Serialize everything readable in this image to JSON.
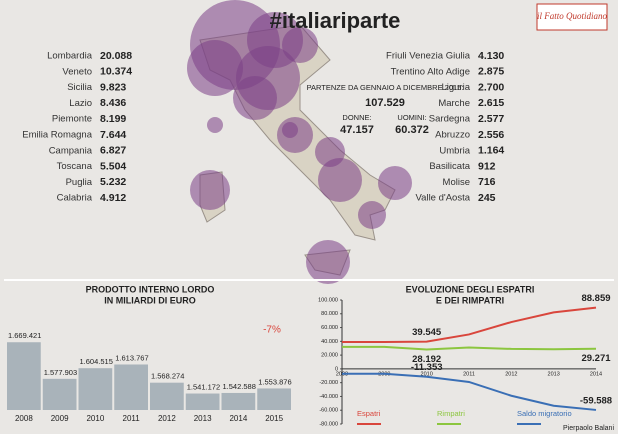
{
  "header": {
    "title": "#italiariparte",
    "logo": "il Fatto Quotidiano"
  },
  "regions_left": [
    [
      "Lombardia",
      "20.088"
    ],
    [
      "Veneto",
      "10.374"
    ],
    [
      "Sicilia",
      "9.823"
    ],
    [
      "Lazio",
      "8.436"
    ],
    [
      "Piemonte",
      "8.199"
    ],
    [
      "Emilia Romagna",
      "7.644"
    ],
    [
      "Campania",
      "6.827"
    ],
    [
      "Toscana",
      "5.504"
    ],
    [
      "Puglia",
      "5.232"
    ],
    [
      "Calabria",
      "4.912"
    ]
  ],
  "regions_right": [
    [
      "Friuli Venezia Giulia",
      "4.130"
    ],
    [
      "Trentino Alto Adige",
      "2.875"
    ],
    [
      "Liguria",
      "2.700"
    ],
    [
      "Marche",
      "2.615"
    ],
    [
      "Sardegna",
      "2.577"
    ],
    [
      "Abruzzo",
      "2.556"
    ],
    [
      "Umbria",
      "1.164"
    ],
    [
      "Basilicata",
      "912"
    ],
    [
      "Molise",
      "716"
    ],
    [
      "Valle d'Aosta",
      "245"
    ]
  ],
  "totals": {
    "label": "PARTENZE DA GENNAIO A DICEMBRE 2015:",
    "total": "107.529",
    "women_label": "DONNE:",
    "women": "47.157",
    "men_label": "UOMINI:",
    "men": "60.372"
  },
  "credit": "Pierpaolo Balani",
  "chart_data": [
    {
      "type": "bar",
      "title": "PRODOTTO INTERNO LORDO",
      "subtitle": "IN MILIARDI DI EURO",
      "annotation": "-7%",
      "categories": [
        "2008",
        "2009",
        "2010",
        "2011",
        "2012",
        "2013",
        "2014",
        "2015"
      ],
      "values": [
        1669421,
        1577903,
        1604515,
        1613767,
        1568274,
        1541172,
        1542588,
        1553876
      ],
      "value_labels": [
        "1.669.421",
        "1.577.903",
        "1.604.515",
        "1.613.767",
        "1.568.274",
        "1.541.172",
        "1.542.588",
        "1.553.876"
      ],
      "color": "#a9b3ba",
      "ylim": [
        1500000,
        1700000
      ]
    },
    {
      "type": "line",
      "title": "EVOLUZIONE DEGLI ESPATRI",
      "subtitle": "E DEI RIMPATRI",
      "categories": [
        "2008",
        "2009",
        "2010",
        "2011",
        "2012",
        "2013",
        "2014"
      ],
      "ylim": [
        -80000,
        100000
      ],
      "yticks": [
        {
          "value": 100000,
          "label": "100.000"
        },
        {
          "value": 80000,
          "label": "80.000"
        },
        {
          "value": 60000,
          "label": "60.000"
        },
        {
          "value": 40000,
          "label": "40.000"
        },
        {
          "value": 20000,
          "label": "20.000"
        },
        0,
        {
          "value": -20000,
          "label": "-20.000"
        },
        {
          "value": -40000,
          "label": "-40.000"
        },
        {
          "value": -60000,
          "label": "-60.000"
        },
        {
          "value": -80000,
          "label": "-80.000"
        }
      ],
      "series": [
        {
          "name": "Espatri",
          "color": "#d9463c",
          "values": [
            39000,
            39000,
            39545,
            50000,
            68000,
            82000,
            88859
          ],
          "value_labels": [
            null,
            null,
            "39.545",
            null,
            null,
            null,
            "88.859"
          ]
        },
        {
          "name": "Rimpatri",
          "color": "#8cc63f",
          "values": [
            32000,
            32000,
            28192,
            31000,
            29000,
            28500,
            29271
          ],
          "value_labels": [
            null,
            null,
            "28.192",
            null,
            null,
            null,
            "29.271"
          ]
        },
        {
          "name": "Saldo migratorio",
          "color": "#3a6fb5",
          "values": [
            -7000,
            -7000,
            -11353,
            -19000,
            -39000,
            -53500,
            -59588
          ],
          "value_labels": [
            null,
            null,
            "-11.353",
            null,
            null,
            null,
            "-59.588"
          ]
        }
      ]
    }
  ]
}
